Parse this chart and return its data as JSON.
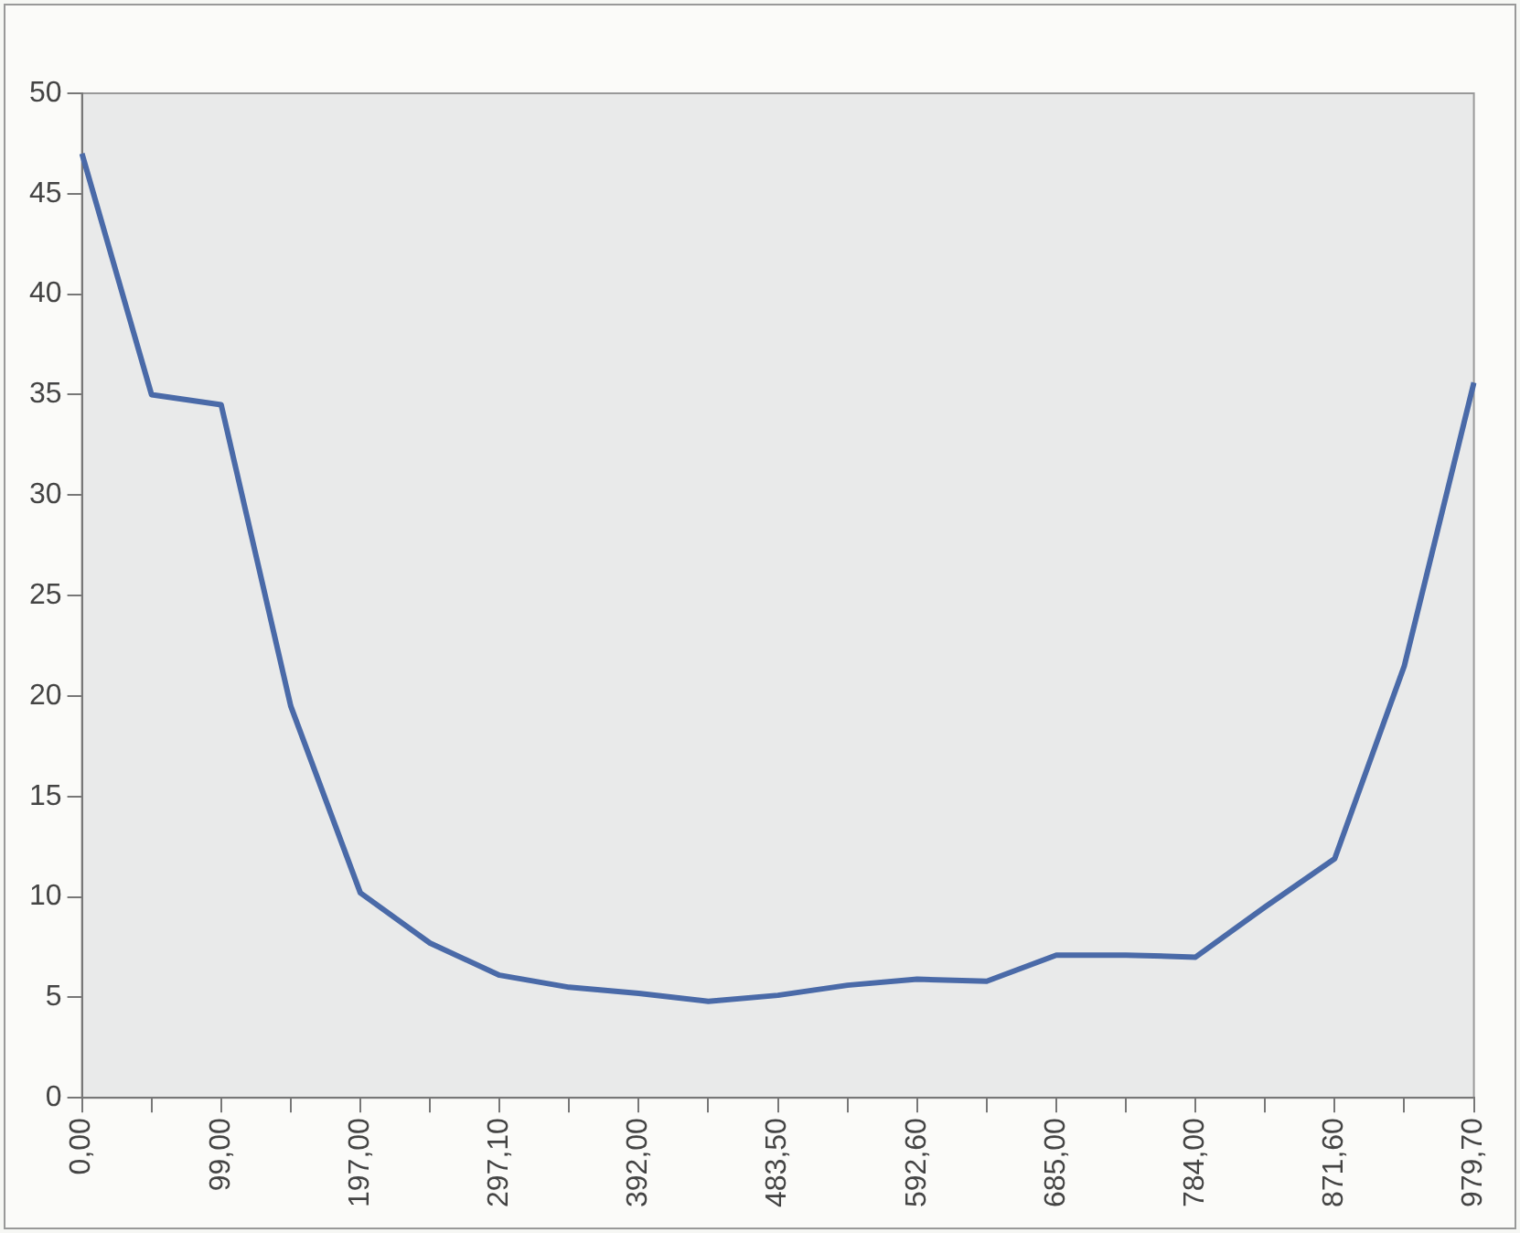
{
  "chart_data": {
    "type": "line",
    "categories": [
      "0,00",
      null,
      "99,00",
      null,
      "197,00",
      null,
      "297,10",
      null,
      "392,00",
      null,
      "483,50",
      null,
      "592,60",
      null,
      "685,00",
      null,
      "784,00",
      null,
      "871,60",
      null,
      "979,70"
    ],
    "series": [
      {
        "color": "#4a6aa8",
        "values": [
          47,
          35,
          34.5,
          19.5,
          10.2,
          7.7,
          6.1,
          5.5,
          5.2,
          4.8,
          5.1,
          5.6,
          5.9,
          5.8,
          7.1,
          7.1,
          7.0,
          9.5,
          11.9,
          21.5,
          35.6
        ]
      }
    ],
    "ylim": [
      0,
      50
    ],
    "yticks": [
      0,
      5,
      10,
      15,
      20,
      25,
      30,
      35,
      40,
      45,
      50
    ],
    "grid": false,
    "legend": false,
    "marker": "none",
    "line_style": "solid"
  }
}
